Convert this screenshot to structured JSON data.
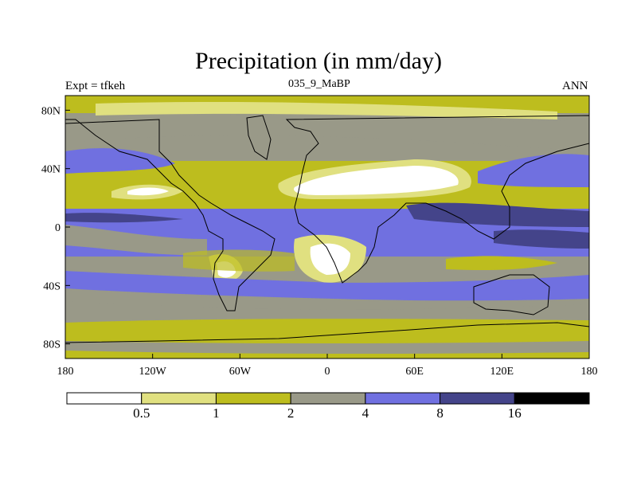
{
  "title": "Precipitation (in mm/day)",
  "left_label": "Expt = tfkeh",
  "center_label": "035_9_MaBP",
  "right_label": "ANN",
  "lat_ticks": [
    "80N",
    "40N",
    "0",
    "40S",
    "80S"
  ],
  "lon_ticks": [
    "180",
    "120W",
    "60W",
    "0",
    "60E",
    "120E",
    "180"
  ],
  "colorbar": {
    "levels": [
      "0.5",
      "1",
      "2",
      "4",
      "8",
      "16"
    ],
    "colors": [
      "#ffffff",
      "#e0e080",
      "#bdbd1e",
      "#999988",
      "#7070e0",
      "#44448a",
      "#000000"
    ]
  },
  "map_colors": {
    "white": "#ffffff",
    "light_yellow": "#e0e080",
    "olive": "#bdbd1e",
    "gray": "#999988",
    "blue": "#7070e0",
    "dark_blue": "#44448a"
  }
}
